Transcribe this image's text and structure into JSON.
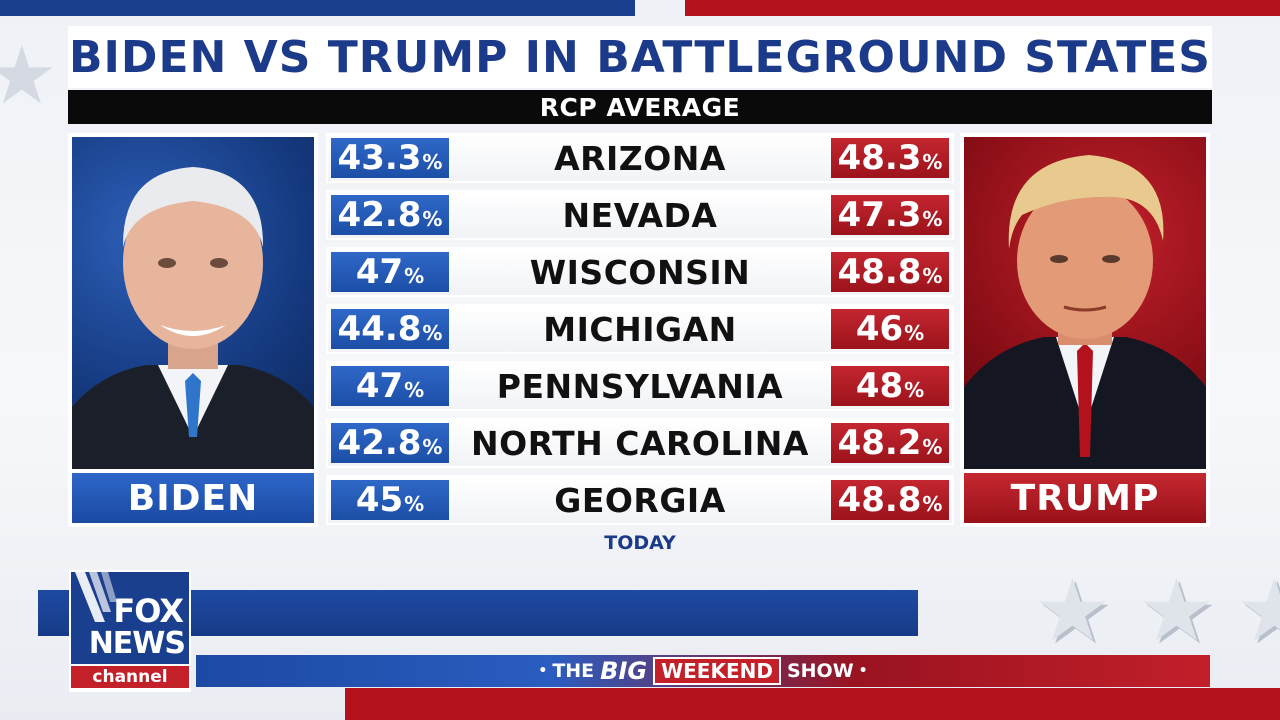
{
  "headline": {
    "title": "BIDEN VS TRUMP IN BATTLEGROUND STATES",
    "subtitle": "RCP AVERAGE"
  },
  "candidates": {
    "left": {
      "name": "BIDEN",
      "color": "#1f4ea6"
    },
    "right": {
      "name": "TRUMP",
      "color": "#a8141d"
    }
  },
  "rows": [
    {
      "state": "ARIZONA",
      "biden": "43.3",
      "trump": "48.3"
    },
    {
      "state": "NEVADA",
      "biden": "42.8",
      "trump": "47.3"
    },
    {
      "state": "WISCONSIN",
      "biden": "47",
      "trump": "48.8"
    },
    {
      "state": "MICHIGAN",
      "biden": "44.8",
      "trump": "46"
    },
    {
      "state": "PENNSYLVANIA",
      "biden": "47",
      "trump": "48"
    },
    {
      "state": "NORTH CAROLINA",
      "biden": "42.8",
      "trump": "48.2"
    },
    {
      "state": "GEORGIA",
      "biden": "45",
      "trump": "48.8"
    }
  ],
  "percent_sign": "%",
  "footnote": "TODAY",
  "network": {
    "line1": "FOX",
    "line2": "NEWS",
    "line3": "channel"
  },
  "show": {
    "dot": "•",
    "the": "THE",
    "big": "BIG",
    "weekend": "WEEKEND",
    "show": "SHOW"
  },
  "icons": {
    "decor": "star-icon"
  }
}
